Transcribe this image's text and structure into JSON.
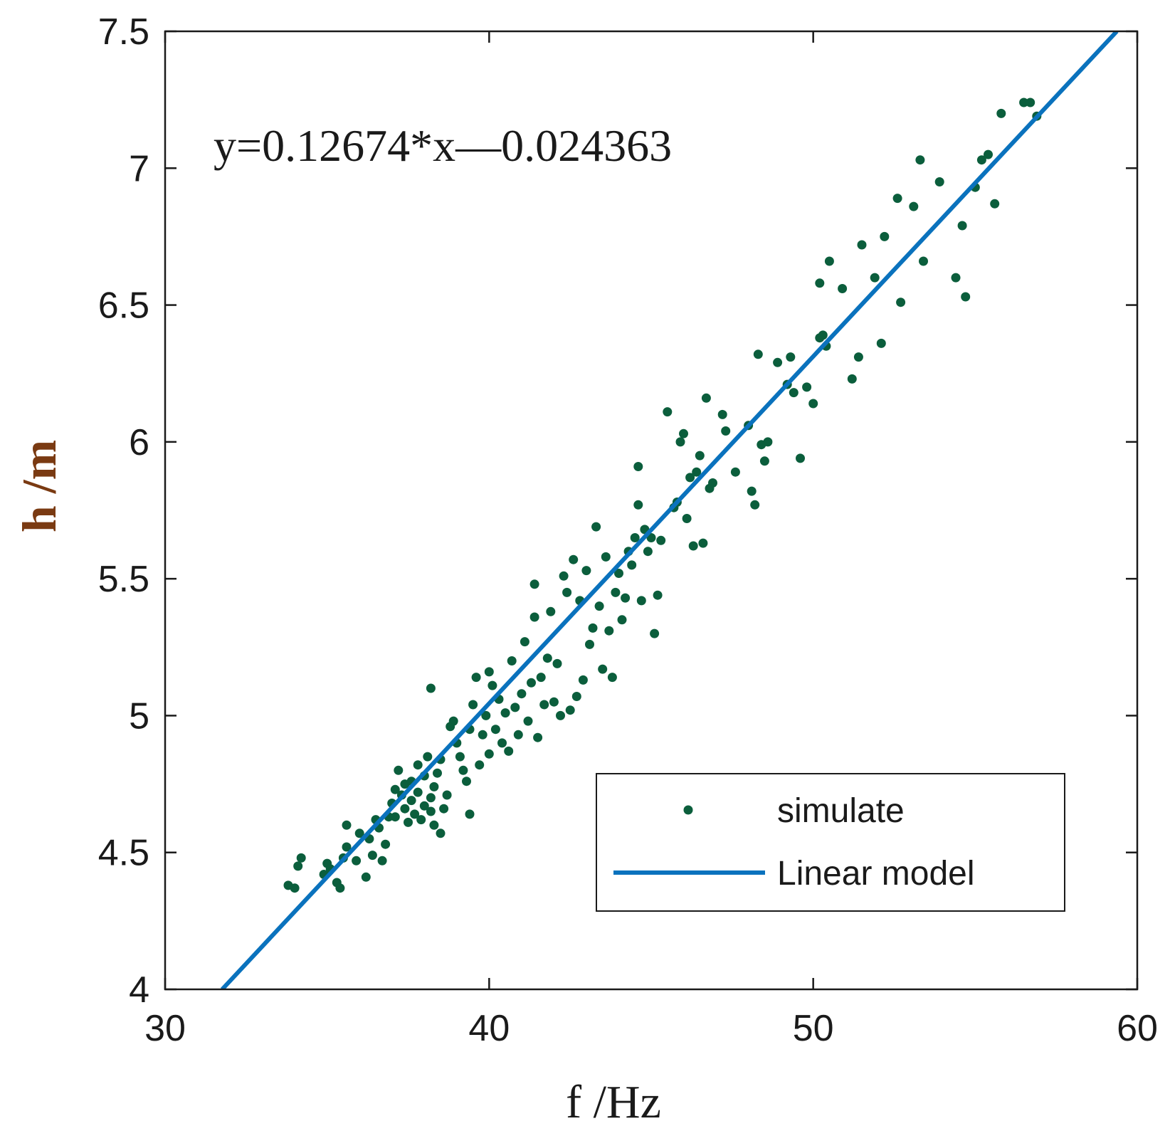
{
  "chart_data": {
    "type": "scatter",
    "title": "",
    "xlabel": "f /Hz",
    "ylabel": "h /m",
    "xlim": [
      30,
      60
    ],
    "ylim": [
      4,
      7.5
    ],
    "xticks": [
      30,
      40,
      50,
      60
    ],
    "xtick_labels": [
      "30",
      "40",
      "50",
      "60"
    ],
    "yticks": [
      4,
      4.5,
      5,
      5.5,
      6,
      6.5,
      7,
      7.5
    ],
    "ytick_labels": [
      "4",
      "4.5",
      "5",
      "5.5",
      "6",
      "6.5",
      "7",
      "7.5"
    ],
    "grid": false,
    "legend_position": "bottom-right",
    "annotation": "y=0.12674*x—0.024363",
    "colors": {
      "points": "#0b5e3c",
      "line": "#0a72bd",
      "axis": "#1a1a1a",
      "ylabel": "#7a3a12"
    },
    "fit": {
      "name": "Linear model",
      "slope": 0.12674,
      "intercept": -0.024363
    },
    "series": [
      {
        "name": "simulate",
        "type": "scatter",
        "points": [
          [
            33.8,
            4.38
          ],
          [
            34.0,
            4.37
          ],
          [
            34.1,
            4.45
          ],
          [
            34.2,
            4.48
          ],
          [
            34.9,
            4.42
          ],
          [
            35.0,
            4.46
          ],
          [
            35.1,
            4.44
          ],
          [
            35.3,
            4.39
          ],
          [
            35.4,
            4.37
          ],
          [
            35.5,
            4.48
          ],
          [
            35.6,
            4.52
          ],
          [
            35.6,
            4.6
          ],
          [
            35.9,
            4.47
          ],
          [
            36.0,
            4.57
          ],
          [
            36.2,
            4.41
          ],
          [
            36.3,
            4.55
          ],
          [
            36.4,
            4.49
          ],
          [
            36.5,
            4.62
          ],
          [
            36.6,
            4.59
          ],
          [
            36.7,
            4.47
          ],
          [
            36.8,
            4.53
          ],
          [
            36.9,
            4.63
          ],
          [
            37.0,
            4.68
          ],
          [
            37.1,
            4.63
          ],
          [
            37.1,
            4.73
          ],
          [
            37.2,
            4.8
          ],
          [
            37.3,
            4.71
          ],
          [
            37.4,
            4.66
          ],
          [
            37.4,
            4.75
          ],
          [
            37.5,
            4.61
          ],
          [
            37.6,
            4.69
          ],
          [
            37.6,
            4.76
          ],
          [
            37.7,
            4.64
          ],
          [
            37.8,
            4.72
          ],
          [
            37.8,
            4.82
          ],
          [
            37.9,
            4.62
          ],
          [
            38.0,
            4.67
          ],
          [
            38.0,
            4.78
          ],
          [
            38.1,
            4.85
          ],
          [
            38.2,
            4.65
          ],
          [
            38.2,
            4.7
          ],
          [
            38.3,
            4.74
          ],
          [
            38.3,
            4.6
          ],
          [
            38.4,
            4.79
          ],
          [
            38.5,
            4.84
          ],
          [
            38.5,
            4.57
          ],
          [
            38.6,
            4.66
          ],
          [
            38.7,
            4.71
          ],
          [
            38.2,
            5.1
          ],
          [
            38.8,
            4.96
          ],
          [
            38.9,
            4.98
          ],
          [
            39.0,
            4.9
          ],
          [
            39.1,
            4.85
          ],
          [
            39.2,
            4.8
          ],
          [
            39.3,
            4.76
          ],
          [
            39.4,
            4.64
          ],
          [
            39.4,
            4.95
          ],
          [
            39.5,
            5.04
          ],
          [
            39.6,
            5.14
          ],
          [
            39.7,
            4.82
          ],
          [
            39.8,
            4.93
          ],
          [
            39.9,
            5.0
          ],
          [
            40.0,
            5.16
          ],
          [
            40.0,
            4.86
          ],
          [
            40.1,
            5.11
          ],
          [
            40.2,
            4.95
          ],
          [
            40.3,
            5.06
          ],
          [
            40.4,
            4.9
          ],
          [
            40.5,
            5.01
          ],
          [
            40.6,
            4.87
          ],
          [
            40.7,
            5.2
          ],
          [
            40.8,
            5.03
          ],
          [
            40.9,
            4.93
          ],
          [
            41.0,
            5.08
          ],
          [
            41.1,
            5.27
          ],
          [
            41.2,
            4.98
          ],
          [
            41.3,
            5.12
          ],
          [
            41.4,
            5.36
          ],
          [
            41.4,
            5.48
          ],
          [
            41.5,
            4.92
          ],
          [
            41.6,
            5.14
          ],
          [
            41.7,
            5.04
          ],
          [
            41.8,
            5.21
          ],
          [
            41.9,
            5.38
          ],
          [
            42.0,
            5.05
          ],
          [
            42.1,
            5.19
          ],
          [
            42.2,
            5.0
          ],
          [
            42.3,
            5.51
          ],
          [
            42.4,
            5.45
          ],
          [
            42.5,
            5.02
          ],
          [
            42.6,
            5.57
          ],
          [
            42.7,
            5.07
          ],
          [
            42.8,
            5.42
          ],
          [
            42.9,
            5.13
          ],
          [
            43.0,
            5.53
          ],
          [
            43.1,
            5.26
          ],
          [
            43.2,
            5.32
          ],
          [
            43.3,
            5.69
          ],
          [
            43.4,
            5.4
          ],
          [
            43.5,
            5.17
          ],
          [
            43.6,
            5.58
          ],
          [
            43.7,
            5.31
          ],
          [
            43.8,
            5.14
          ],
          [
            43.9,
            5.45
          ],
          [
            44.0,
            5.52
          ],
          [
            44.1,
            5.35
          ],
          [
            44.2,
            5.43
          ],
          [
            44.3,
            5.6
          ],
          [
            44.4,
            5.55
          ],
          [
            44.5,
            5.65
          ],
          [
            44.6,
            5.77
          ],
          [
            44.6,
            5.91
          ],
          [
            44.7,
            5.42
          ],
          [
            44.8,
            5.68
          ],
          [
            44.9,
            5.6
          ],
          [
            45.0,
            5.65
          ],
          [
            45.1,
            5.3
          ],
          [
            45.2,
            5.44
          ],
          [
            45.3,
            5.64
          ],
          [
            45.5,
            6.11
          ],
          [
            45.7,
            5.76
          ],
          [
            45.8,
            5.78
          ],
          [
            45.9,
            6.0
          ],
          [
            46.0,
            6.03
          ],
          [
            46.1,
            5.72
          ],
          [
            46.2,
            5.87
          ],
          [
            46.3,
            5.62
          ],
          [
            46.4,
            5.89
          ],
          [
            46.5,
            5.95
          ],
          [
            46.6,
            5.63
          ],
          [
            46.7,
            6.16
          ],
          [
            46.8,
            5.83
          ],
          [
            46.9,
            5.85
          ],
          [
            47.2,
            6.1
          ],
          [
            47.3,
            6.04
          ],
          [
            47.6,
            5.89
          ],
          [
            48.0,
            6.06
          ],
          [
            48.1,
            5.82
          ],
          [
            48.2,
            5.77
          ],
          [
            48.3,
            6.32
          ],
          [
            48.4,
            5.99
          ],
          [
            48.5,
            5.93
          ],
          [
            48.6,
            6.0
          ],
          [
            48.9,
            6.29
          ],
          [
            49.2,
            6.21
          ],
          [
            49.3,
            6.31
          ],
          [
            49.4,
            6.18
          ],
          [
            49.6,
            5.94
          ],
          [
            49.8,
            6.2
          ],
          [
            50.0,
            6.14
          ],
          [
            50.2,
            6.38
          ],
          [
            50.3,
            6.39
          ],
          [
            50.4,
            6.35
          ],
          [
            50.2,
            6.58
          ],
          [
            50.5,
            6.66
          ],
          [
            50.9,
            6.56
          ],
          [
            51.2,
            6.23
          ],
          [
            51.4,
            6.31
          ],
          [
            51.5,
            6.72
          ],
          [
            51.9,
            6.6
          ],
          [
            52.2,
            6.75
          ],
          [
            52.1,
            6.36
          ],
          [
            52.6,
            6.89
          ],
          [
            52.7,
            6.51
          ],
          [
            53.1,
            6.86
          ],
          [
            53.3,
            7.03
          ],
          [
            53.4,
            6.66
          ],
          [
            53.9,
            6.95
          ],
          [
            54.4,
            6.6
          ],
          [
            54.6,
            6.79
          ],
          [
            54.7,
            6.53
          ],
          [
            55.0,
            6.93
          ],
          [
            55.2,
            7.03
          ],
          [
            55.4,
            7.05
          ],
          [
            55.6,
            6.87
          ],
          [
            55.8,
            7.2
          ],
          [
            56.5,
            7.24
          ],
          [
            56.7,
            7.24
          ],
          [
            56.9,
            7.19
          ]
        ]
      },
      {
        "name": "Linear model",
        "type": "line",
        "x": [
          31.76,
          59.37
        ],
        "y": [
          4.0,
          7.5
        ]
      }
    ]
  }
}
